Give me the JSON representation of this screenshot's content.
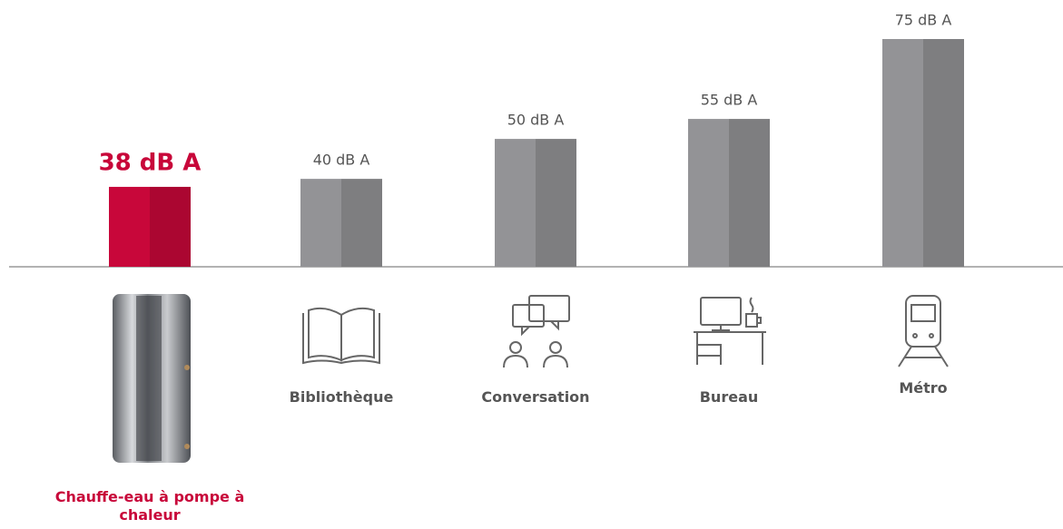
{
  "chart_data": {
    "type": "bar",
    "categories": [
      "Chauffe-eau à pompe à chaleur",
      "Bibliothèque",
      "Conversation",
      "Bureau",
      "Métro"
    ],
    "values": [
      38,
      40,
      50,
      55,
      75
    ],
    "value_labels": [
      "38 dB A",
      "40 dB A",
      "50 dB A",
      "55 dB A",
      "75 dB A"
    ],
    "colors": [
      "#c8073a",
      "#939396",
      "#939396",
      "#939396",
      "#939396"
    ],
    "ylim": [
      18,
      80
    ]
  }
}
